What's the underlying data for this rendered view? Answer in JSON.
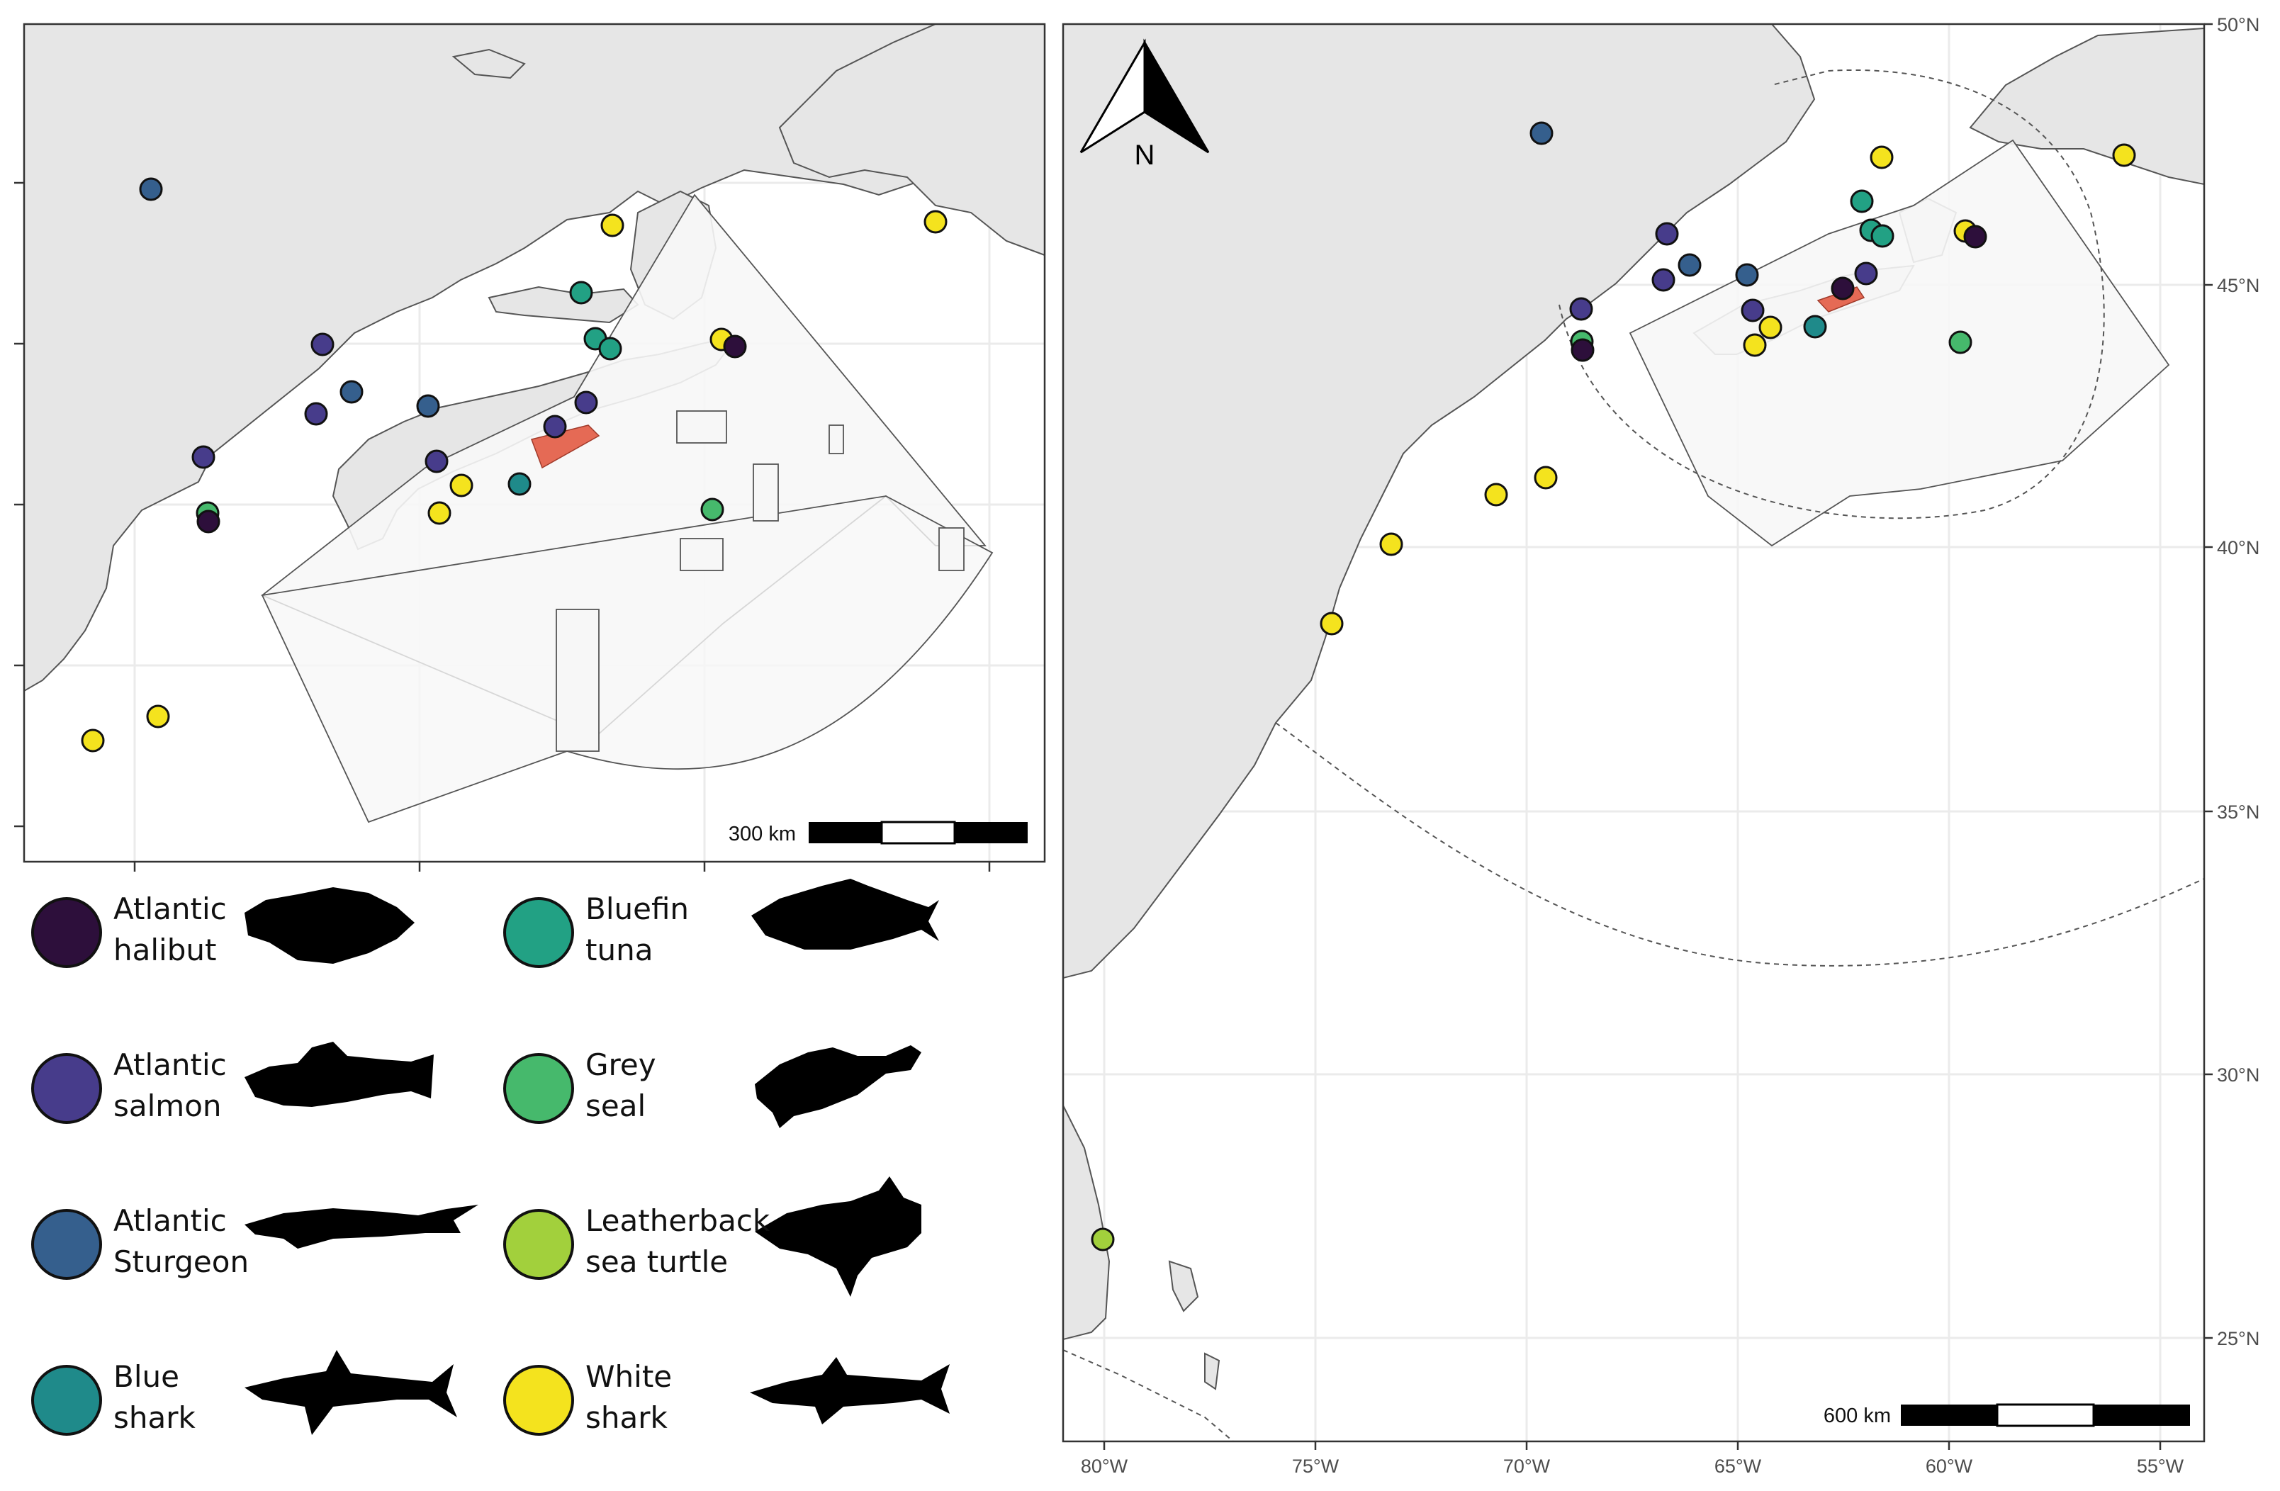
{
  "colors": {
    "atlantic_halibut": "#2d0f3b",
    "atlantic_salmon": "#473c8b",
    "atlantic_sturgeon": "#355f8d",
    "blue_shark": "#1f8a8a",
    "bluefin_tuna": "#22a184",
    "grey_seal": "#46b96c",
    "leatherback": "#a2d03c",
    "white_shark": "#f4e31e",
    "restricted_zone": "#e56a55",
    "land": "#e6e6e6"
  },
  "legend": [
    {
      "key": "atlantic_halibut",
      "label": "Atlantic\nhalibut",
      "silhouette": "halibut-silhouette-icon"
    },
    {
      "key": "atlantic_salmon",
      "label": "Atlantic\nsalmon",
      "silhouette": "salmon-silhouette-icon"
    },
    {
      "key": "atlantic_sturgeon",
      "label": "Atlantic\nSturgeon",
      "silhouette": "sturgeon-silhouette-icon"
    },
    {
      "key": "blue_shark",
      "label": "Blue\nshark",
      "silhouette": "blue-shark-silhouette-icon"
    },
    {
      "key": "bluefin_tuna",
      "label": "Bluefin\ntuna",
      "silhouette": "tuna-silhouette-icon"
    },
    {
      "key": "grey_seal",
      "label": "Grey\nseal",
      "silhouette": "seal-silhouette-icon"
    },
    {
      "key": "leatherback",
      "label": "Leatherback\nsea turtle",
      "silhouette": "turtle-silhouette-icon"
    },
    {
      "key": "white_shark",
      "label": "White\nshark",
      "silhouette": "white-shark-silhouette-icon"
    }
  ],
  "left_map": {
    "scale_bar_label": "300 km"
  },
  "right_map": {
    "scale_bar_label": "600 km",
    "north_arrow_label": "N",
    "lon_ticks": [
      "80°W",
      "75°W",
      "70°W",
      "65°W",
      "60°W",
      "55°W"
    ],
    "lat_ticks": [
      "50°N",
      "45°N",
      "40°N",
      "35°N",
      "30°N",
      "25°N"
    ]
  }
}
